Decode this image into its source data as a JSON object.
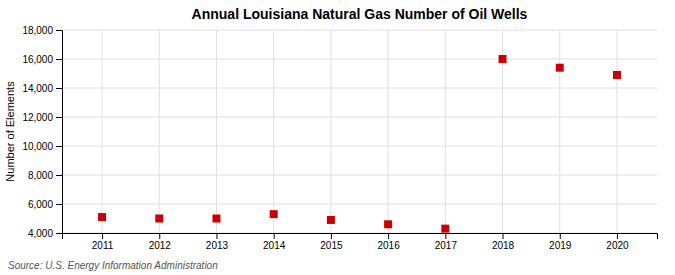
{
  "chart_data": {
    "type": "scatter",
    "title": "Annual Louisiana Natural Gas Number of Oil Wells",
    "ylabel": "Number of Elements",
    "source": "Source: U.S. Energy Information Administration",
    "x": [
      2011,
      2012,
      2013,
      2014,
      2015,
      2016,
      2017,
      2018,
      2019,
      2020
    ],
    "values": [
      5100,
      5000,
      5000,
      5300,
      4900,
      4600,
      4300,
      16000,
      15400,
      14900
    ],
    "xlim": [
      2010.3,
      2020.7
    ],
    "xticks": [
      2011,
      2012,
      2013,
      2014,
      2015,
      2016,
      2017,
      2018,
      2019,
      2020
    ],
    "ylim": [
      4000,
      18000
    ],
    "yticks": [
      {
        "value": 4000,
        "label": "4,000"
      },
      {
        "value": 6000,
        "label": "6,000"
      },
      {
        "value": 8000,
        "label": "8,000"
      },
      {
        "value": 10000,
        "label": "10,000"
      },
      {
        "value": 12000,
        "label": "12,000"
      },
      {
        "value": 14000,
        "label": "14,000"
      },
      {
        "value": 16000,
        "label": "16,000"
      },
      {
        "value": 18000,
        "label": "18,000"
      }
    ],
    "color": "#cc0000",
    "marker": "square",
    "grid": true
  }
}
